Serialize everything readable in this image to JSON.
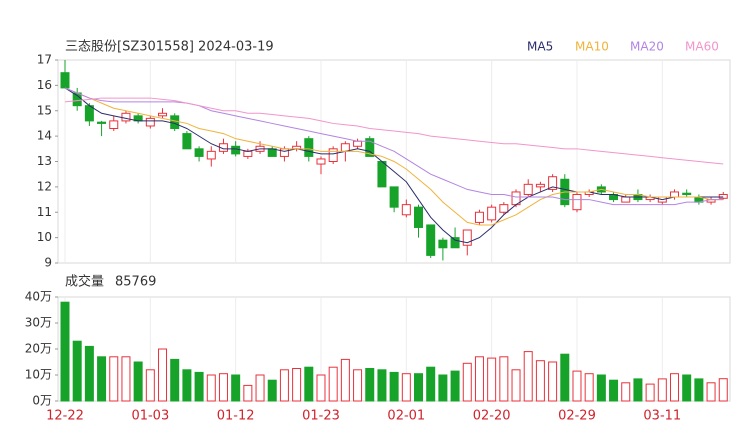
{
  "chart_data": {
    "type": "candlestick",
    "title": "三态股份[SZ301558] 2024-03-19",
    "categories": [
      "12-22",
      null,
      null,
      null,
      null,
      null,
      null,
      "01-03",
      null,
      null,
      null,
      null,
      null,
      null,
      "01-12",
      null,
      null,
      null,
      null,
      null,
      null,
      "01-23",
      null,
      null,
      null,
      null,
      null,
      null,
      "02-01",
      null,
      null,
      null,
      null,
      null,
      null,
      "02-20",
      null,
      null,
      null,
      null,
      null,
      null,
      "02-29",
      null,
      null,
      null,
      null,
      null,
      null,
      "03-11",
      null,
      null,
      null,
      null,
      null
    ],
    "up_color": "#e8323c",
    "down_color": "#17a32a",
    "candles": [
      {
        "open": 16.5,
        "high": 17.0,
        "low": 15.9,
        "close": 15.9
      },
      {
        "open": 15.7,
        "high": 15.9,
        "low": 15.0,
        "close": 15.2
      },
      {
        "open": 15.2,
        "high": 15.3,
        "low": 14.4,
        "close": 14.6
      },
      {
        "open": 14.55,
        "high": 14.6,
        "low": 14.0,
        "close": 14.5
      },
      {
        "open": 14.3,
        "high": 14.8,
        "low": 14.2,
        "close": 14.6
      },
      {
        "open": 14.6,
        "high": 15.0,
        "low": 14.5,
        "close": 14.9
      },
      {
        "open": 14.8,
        "high": 14.9,
        "low": 14.5,
        "close": 14.6
      },
      {
        "open": 14.4,
        "high": 14.8,
        "low": 14.3,
        "close": 14.7
      },
      {
        "open": 14.8,
        "high": 15.1,
        "low": 14.7,
        "close": 14.9
      },
      {
        "open": 14.8,
        "high": 14.9,
        "low": 14.2,
        "close": 14.3
      },
      {
        "open": 14.1,
        "high": 14.2,
        "low": 13.5,
        "close": 13.5
      },
      {
        "open": 13.5,
        "high": 13.6,
        "low": 13.0,
        "close": 13.2
      },
      {
        "open": 13.1,
        "high": 13.6,
        "low": 12.8,
        "close": 13.4
      },
      {
        "open": 13.4,
        "high": 13.9,
        "low": 13.3,
        "close": 13.7
      },
      {
        "open": 13.6,
        "high": 13.8,
        "low": 13.2,
        "close": 13.3
      },
      {
        "open": 13.2,
        "high": 13.5,
        "low": 13.1,
        "close": 13.4
      },
      {
        "open": 13.4,
        "high": 13.8,
        "low": 13.3,
        "close": 13.6
      },
      {
        "open": 13.5,
        "high": 13.6,
        "low": 13.2,
        "close": 13.2
      },
      {
        "open": 13.2,
        "high": 13.6,
        "low": 13.0,
        "close": 13.5
      },
      {
        "open": 13.5,
        "high": 13.8,
        "low": 13.4,
        "close": 13.6
      },
      {
        "open": 13.9,
        "high": 14.0,
        "low": 13.0,
        "close": 13.2
      },
      {
        "open": 12.9,
        "high": 13.2,
        "low": 12.5,
        "close": 13.1
      },
      {
        "open": 13.0,
        "high": 13.6,
        "low": 12.9,
        "close": 13.5
      },
      {
        "open": 13.4,
        "high": 13.8,
        "low": 13.0,
        "close": 13.7
      },
      {
        "open": 13.6,
        "high": 13.9,
        "low": 13.5,
        "close": 13.8
      },
      {
        "open": 13.9,
        "high": 14.0,
        "low": 13.2,
        "close": 13.2
      },
      {
        "open": 13.0,
        "high": 13.0,
        "low": 12.0,
        "close": 12.0
      },
      {
        "open": 12.0,
        "high": 12.0,
        "low": 11.0,
        "close": 11.2
      },
      {
        "open": 10.9,
        "high": 11.5,
        "low": 10.8,
        "close": 11.3
      },
      {
        "open": 11.2,
        "high": 11.3,
        "low": 10.0,
        "close": 10.4
      },
      {
        "open": 10.5,
        "high": 10.5,
        "low": 9.2,
        "close": 9.3
      },
      {
        "open": 9.9,
        "high": 10.0,
        "low": 9.1,
        "close": 9.6
      },
      {
        "open": 10.0,
        "high": 10.4,
        "low": 9.6,
        "close": 9.6
      },
      {
        "open": 9.7,
        "high": 10.3,
        "low": 9.3,
        "close": 10.3
      },
      {
        "open": 10.6,
        "high": 11.1,
        "low": 10.5,
        "close": 11.0
      },
      {
        "open": 10.7,
        "high": 11.3,
        "low": 10.6,
        "close": 11.2
      },
      {
        "open": 11.0,
        "high": 11.4,
        "low": 10.9,
        "close": 11.3
      },
      {
        "open": 11.3,
        "high": 11.9,
        "low": 11.2,
        "close": 11.8
      },
      {
        "open": 11.7,
        "high": 12.3,
        "low": 11.6,
        "close": 12.1
      },
      {
        "open": 12.0,
        "high": 12.2,
        "low": 11.8,
        "close": 12.1
      },
      {
        "open": 11.9,
        "high": 12.5,
        "low": 11.8,
        "close": 12.4
      },
      {
        "open": 12.3,
        "high": 12.5,
        "low": 11.2,
        "close": 11.3
      },
      {
        "open": 11.1,
        "high": 11.8,
        "low": 11.0,
        "close": 11.7
      },
      {
        "open": 11.7,
        "high": 11.9,
        "low": 11.6,
        "close": 11.8
      },
      {
        "open": 12.0,
        "high": 12.1,
        "low": 11.7,
        "close": 11.8
      },
      {
        "open": 11.7,
        "high": 11.8,
        "low": 11.4,
        "close": 11.5
      },
      {
        "open": 11.4,
        "high": 11.7,
        "low": 11.4,
        "close": 11.6
      },
      {
        "open": 11.7,
        "high": 11.9,
        "low": 11.4,
        "close": 11.5
      },
      {
        "open": 11.5,
        "high": 11.7,
        "low": 11.4,
        "close": 11.6
      },
      {
        "open": 11.4,
        "high": 11.6,
        "low": 11.3,
        "close": 11.6
      },
      {
        "open": 11.6,
        "high": 11.9,
        "low": 11.5,
        "close": 11.8
      },
      {
        "open": 11.75,
        "high": 11.9,
        "low": 11.6,
        "close": 11.7
      },
      {
        "open": 11.6,
        "high": 11.7,
        "low": 11.3,
        "close": 11.4
      },
      {
        "open": 11.4,
        "high": 11.6,
        "low": 11.3,
        "close": 11.5
      },
      {
        "open": 11.55,
        "high": 11.8,
        "low": 11.5,
        "close": 11.7
      }
    ],
    "series": [
      {
        "name": "MA5",
        "color": "#2b2d6e",
        "values": [
          15.9,
          15.6,
          15.2,
          14.9,
          14.8,
          14.7,
          14.6,
          14.6,
          14.6,
          14.5,
          14.3,
          14.0,
          13.7,
          13.5,
          13.5,
          13.4,
          13.5,
          13.5,
          13.4,
          13.5,
          13.4,
          13.3,
          13.3,
          13.4,
          13.5,
          13.4,
          13.0,
          12.6,
          12.2,
          11.5,
          10.8,
          10.3,
          9.9,
          9.8,
          10.0,
          10.4,
          10.9,
          11.3,
          11.6,
          11.8,
          12.0,
          11.9,
          11.8,
          11.8,
          11.7,
          11.7,
          11.6,
          11.6,
          11.6,
          11.5,
          11.6,
          11.6,
          11.6,
          11.6,
          11.6
        ]
      },
      {
        "name": "MA10",
        "color": "#f0b33c",
        "values": [
          15.9,
          15.7,
          15.5,
          15.3,
          15.1,
          15.0,
          14.9,
          14.8,
          14.7,
          14.6,
          14.5,
          14.3,
          14.2,
          14.1,
          13.9,
          13.8,
          13.7,
          13.6,
          13.5,
          13.5,
          13.5,
          13.4,
          13.4,
          13.4,
          13.4,
          13.3,
          13.2,
          13.0,
          12.7,
          12.3,
          11.9,
          11.4,
          11.0,
          10.6,
          10.5,
          10.5,
          10.7,
          10.9,
          11.2,
          11.5,
          11.7,
          11.8,
          11.8,
          11.8,
          11.9,
          11.8,
          11.7,
          11.7,
          11.6,
          11.6,
          11.6,
          11.6,
          11.6,
          11.5,
          11.5
        ]
      },
      {
        "name": "MA20",
        "color": "#b285e3",
        "values": [
          15.9,
          15.7,
          15.5,
          15.4,
          15.35,
          15.35,
          15.35,
          15.35,
          15.35,
          15.35,
          15.3,
          15.2,
          15.0,
          14.9,
          14.8,
          14.7,
          14.6,
          14.5,
          14.4,
          14.3,
          14.2,
          14.1,
          14.0,
          13.9,
          13.8,
          13.8,
          13.6,
          13.4,
          13.1,
          12.8,
          12.5,
          12.3,
          12.1,
          11.9,
          11.8,
          11.7,
          11.7,
          11.6,
          11.6,
          11.6,
          11.6,
          11.5,
          11.5,
          11.5,
          11.4,
          11.3,
          11.3,
          11.3,
          11.3,
          11.3,
          11.3,
          11.4,
          11.4,
          11.5,
          11.5
        ]
      },
      {
        "name": "MA60",
        "color": "#f295cb",
        "values": [
          15.35,
          15.4,
          15.45,
          15.5,
          15.5,
          15.5,
          15.5,
          15.5,
          15.45,
          15.4,
          15.3,
          15.2,
          15.1,
          15.0,
          15.0,
          14.9,
          14.9,
          14.85,
          14.8,
          14.75,
          14.7,
          14.6,
          14.5,
          14.45,
          14.4,
          14.3,
          14.25,
          14.2,
          14.15,
          14.1,
          14.0,
          13.95,
          13.9,
          13.85,
          13.8,
          13.75,
          13.7,
          13.7,
          13.65,
          13.6,
          13.55,
          13.5,
          13.5,
          13.45,
          13.4,
          13.35,
          13.3,
          13.25,
          13.2,
          13.15,
          13.1,
          13.05,
          13.0,
          12.95,
          12.9
        ]
      }
    ],
    "ylim": [
      9,
      17
    ],
    "yticks": [
      9,
      10,
      11,
      12,
      13,
      14,
      15,
      16,
      17
    ],
    "volume_title": "成交量",
    "volume": [
      380000,
      230000,
      210000,
      170000,
      170000,
      170000,
      150000,
      120000,
      200000,
      160000,
      120000,
      110000,
      100000,
      105000,
      100000,
      60000,
      100000,
      80000,
      120000,
      125000,
      130000,
      100000,
      130000,
      160000,
      120000,
      125000,
      120000,
      110000,
      105000,
      105000,
      130000,
      100000,
      115000,
      145000,
      170000,
      165000,
      170000,
      120000,
      190000,
      155000,
      150000,
      180000,
      115000,
      105000,
      100000,
      80000,
      70000,
      85000,
      65000,
      85000,
      105000,
      100000,
      85000,
      70000,
      85769
    ],
    "y2lim": [
      0,
      400000
    ],
    "y2ticks": [
      {
        "value": 0,
        "label": "0万"
      },
      {
        "value": 100000,
        "label": "10万"
      },
      {
        "value": 200000,
        "label": "20万"
      },
      {
        "value": 300000,
        "label": "30万"
      },
      {
        "value": 400000,
        "label": "40万"
      }
    ]
  }
}
